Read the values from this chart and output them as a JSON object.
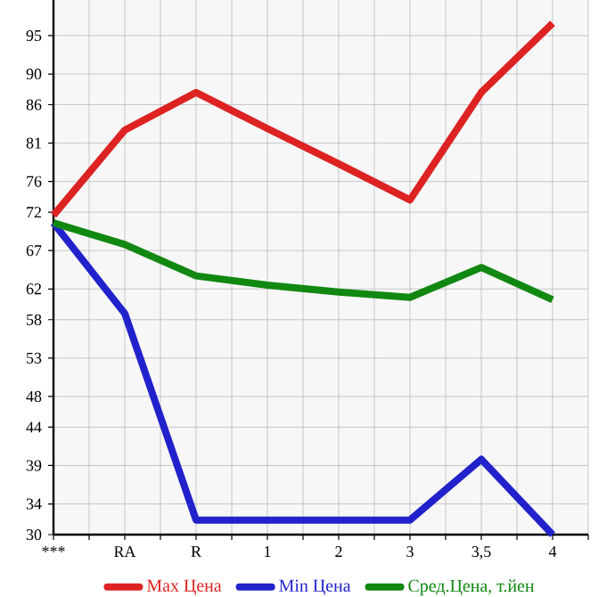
{
  "chart_data": {
    "type": "line",
    "categories": [
      "***",
      "RA",
      "R",
      "1",
      "2",
      "3",
      "3,5",
      "4"
    ],
    "series": [
      {
        "name": "Max Цена",
        "color": "#dd2222",
        "values": [
          71.6,
          82.7,
          87.6,
          82.9,
          78.3,
          73.6,
          87.6,
          96.6
        ]
      },
      {
        "name": "Min Цена",
        "color": "#2222cc",
        "values": [
          70.6,
          58.8,
          31.9,
          31.9,
          31.9,
          31.9,
          39.8,
          30
        ]
      },
      {
        "name": "Сред.Цена, т.йен",
        "color": "#118811",
        "values": [
          70.6,
          67.8,
          63.7,
          62.5,
          61.6,
          60.9,
          64.8,
          60.6
        ]
      }
    ],
    "ylim": [
      30,
      99.64
    ],
    "yticks": [
      30,
      34,
      39,
      44,
      48,
      53,
      58,
      62,
      67,
      72,
      76,
      81,
      86,
      90,
      95
    ],
    "grid": true,
    "legend": "bottom",
    "marker": "none",
    "line_style": "solid"
  }
}
